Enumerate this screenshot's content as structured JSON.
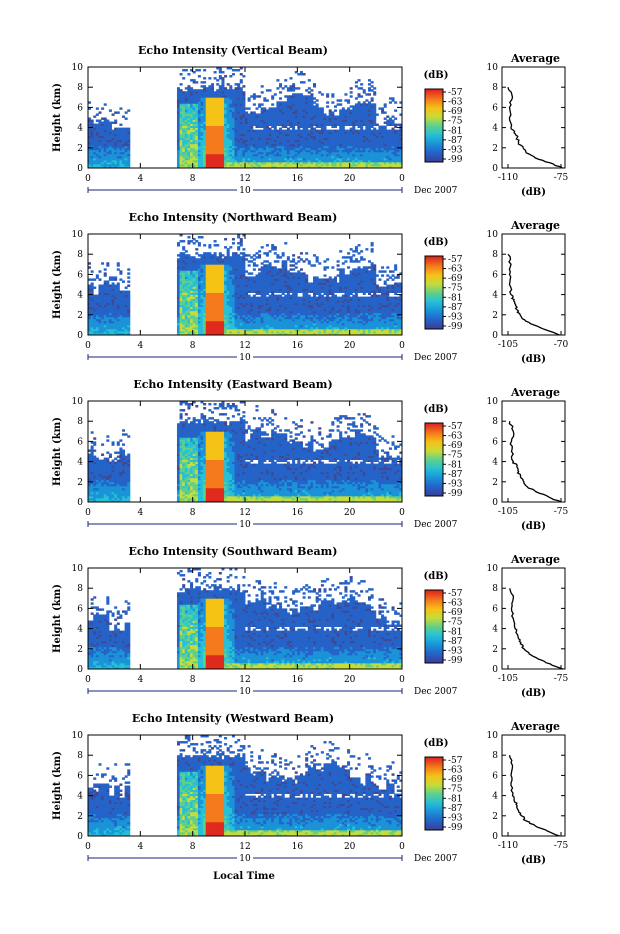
{
  "figure": {
    "xlabel": "Local Time",
    "date_label": "Dec 2007",
    "day_label": "10",
    "colorbar_unit": "(dB)",
    "colorbar_ticks": [
      "-57",
      "-63",
      "-69",
      "-75",
      "-81",
      "-87",
      "-93",
      "-99"
    ],
    "colors": {
      "background_echo": "#404a94",
      "scale": [
        "#3b3f9a",
        "#2563c8",
        "#1a93d8",
        "#27c0d6",
        "#5fd08a",
        "#c6dc3a",
        "#f5c216",
        "#f47a1c",
        "#e02a1e"
      ]
    }
  },
  "chart_data": [
    {
      "type": "heatmap",
      "title": "Echo Intensity (Vertical Beam)",
      "ylabel": "Height (km)",
      "xlim": [
        0,
        24
      ],
      "ylim": [
        0,
        10
      ],
      "xticks": [
        "0",
        "4",
        "8",
        "12",
        "16",
        "20",
        "0"
      ],
      "yticks": [
        "0",
        "2",
        "4",
        "6",
        "8",
        "10"
      ],
      "data_gap_hours": [
        3.2,
        6.8
      ],
      "convective_core_hour": 9.7,
      "profile": {
        "title": "Average",
        "xlabel": "(dB)",
        "xticks": [
          "-110",
          "-75"
        ],
        "ylim": [
          0,
          10
        ],
        "yticks": [
          "0",
          "2",
          "4",
          "6",
          "8",
          "10"
        ],
        "height_km": [
          0.0,
          0.5,
          1.0,
          1.5,
          2.0,
          2.5,
          3.0,
          3.5,
          4.0,
          5.0,
          6.0,
          7.0,
          8.0
        ],
        "value_db": [
          -74,
          -82,
          -92,
          -98,
          -100,
          -103,
          -104,
          -106,
          -108,
          -109,
          -109,
          -107,
          -110
        ]
      }
    },
    {
      "type": "heatmap",
      "title": "Echo Intensity (Northward Beam)",
      "ylabel": "Height (km)",
      "xlim": [
        0,
        24
      ],
      "ylim": [
        0,
        10
      ],
      "xticks": [
        "0",
        "4",
        "8",
        "12",
        "16",
        "20",
        "0"
      ],
      "yticks": [
        "0",
        "2",
        "4",
        "6",
        "8",
        "10"
      ],
      "data_gap_hours": [
        3.2,
        6.8
      ],
      "convective_core_hour": 9.7,
      "profile": {
        "title": "Average",
        "xlabel": "(dB)",
        "xticks": [
          "-105",
          "-70"
        ],
        "ylim": [
          0,
          10
        ],
        "yticks": [
          "0",
          "2",
          "4",
          "6",
          "8",
          "10"
        ],
        "height_km": [
          0.0,
          0.5,
          1.0,
          1.5,
          2.0,
          2.5,
          3.0,
          3.5,
          4.0,
          5.0,
          6.0,
          7.0,
          8.0
        ],
        "value_db": [
          -71,
          -80,
          -88,
          -94,
          -97,
          -99,
          -100,
          -101,
          -103,
          -104,
          -104,
          -103,
          -105
        ]
      }
    },
    {
      "type": "heatmap",
      "title": "Echo Intensity (Eastward Beam)",
      "ylabel": "Height (km)",
      "xlim": [
        0,
        24
      ],
      "ylim": [
        0,
        10
      ],
      "xticks": [
        "0",
        "4",
        "8",
        "12",
        "16",
        "20",
        "0"
      ],
      "yticks": [
        "0",
        "2",
        "4",
        "6",
        "8",
        "10"
      ],
      "data_gap_hours": [
        3.2,
        6.8
      ],
      "convective_core_hour": 9.7,
      "profile": {
        "title": "Average",
        "xlabel": "(dB)",
        "xticks": [
          "-105",
          "-75"
        ],
        "ylim": [
          0,
          10
        ],
        "yticks": [
          "0",
          "2",
          "4",
          "6",
          "8",
          "10"
        ],
        "height_km": [
          0.0,
          0.5,
          1.0,
          1.5,
          2.0,
          2.5,
          3.0,
          3.5,
          4.0,
          5.0,
          6.0,
          7.0,
          8.0
        ],
        "value_db": [
          -75,
          -82,
          -89,
          -94,
          -96,
          -98,
          -99,
          -100,
          -102,
          -103,
          -103,
          -102,
          -104
        ]
      }
    },
    {
      "type": "heatmap",
      "title": "Echo Intensity (Southward Beam)",
      "ylabel": "Height (km)",
      "xlim": [
        0,
        24
      ],
      "ylim": [
        0,
        10
      ],
      "xticks": [
        "0",
        "4",
        "8",
        "12",
        "16",
        "20",
        "0"
      ],
      "yticks": [
        "0",
        "2",
        "4",
        "6",
        "8",
        "10"
      ],
      "data_gap_hours": [
        3.2,
        6.8
      ],
      "convective_core_hour": 9.7,
      "profile": {
        "title": "Average",
        "xlabel": "(dB)",
        "xticks": [
          "-105",
          "-75"
        ],
        "ylim": [
          0,
          10
        ],
        "yticks": [
          "0",
          "2",
          "4",
          "6",
          "8",
          "10"
        ],
        "height_km": [
          0.0,
          0.5,
          1.0,
          1.5,
          2.0,
          2.5,
          3.0,
          3.5,
          4.0,
          5.0,
          6.0,
          7.0,
          8.0
        ],
        "value_db": [
          -74,
          -81,
          -88,
          -93,
          -96,
          -98,
          -99,
          -100,
          -101,
          -102,
          -103,
          -102,
          -104
        ]
      }
    },
    {
      "type": "heatmap",
      "title": "Echo Intensity (Westward Beam)",
      "ylabel": "Height (km)",
      "xlim": [
        0,
        24
      ],
      "ylim": [
        0,
        10
      ],
      "xticks": [
        "0",
        "4",
        "8",
        "12",
        "16",
        "20",
        "0"
      ],
      "yticks": [
        "0",
        "2",
        "4",
        "6",
        "8",
        "10"
      ],
      "data_gap_hours": [
        3.2,
        6.8
      ],
      "convective_core_hour": 9.7,
      "profile": {
        "title": "Average",
        "xlabel": "(dB)",
        "xticks": [
          "-110",
          "-75"
        ],
        "ylim": [
          0,
          10
        ],
        "yticks": [
          "0",
          "2",
          "4",
          "6",
          "8",
          "10"
        ],
        "height_km": [
          0.0,
          0.5,
          1.0,
          1.5,
          2.0,
          2.5,
          3.0,
          3.5,
          4.0,
          5.0,
          6.0,
          7.0,
          8.0
        ],
        "value_db": [
          -76,
          -84,
          -92,
          -98,
          -101,
          -103,
          -104,
          -106,
          -107,
          -108,
          -108,
          -107,
          -109
        ]
      }
    }
  ]
}
